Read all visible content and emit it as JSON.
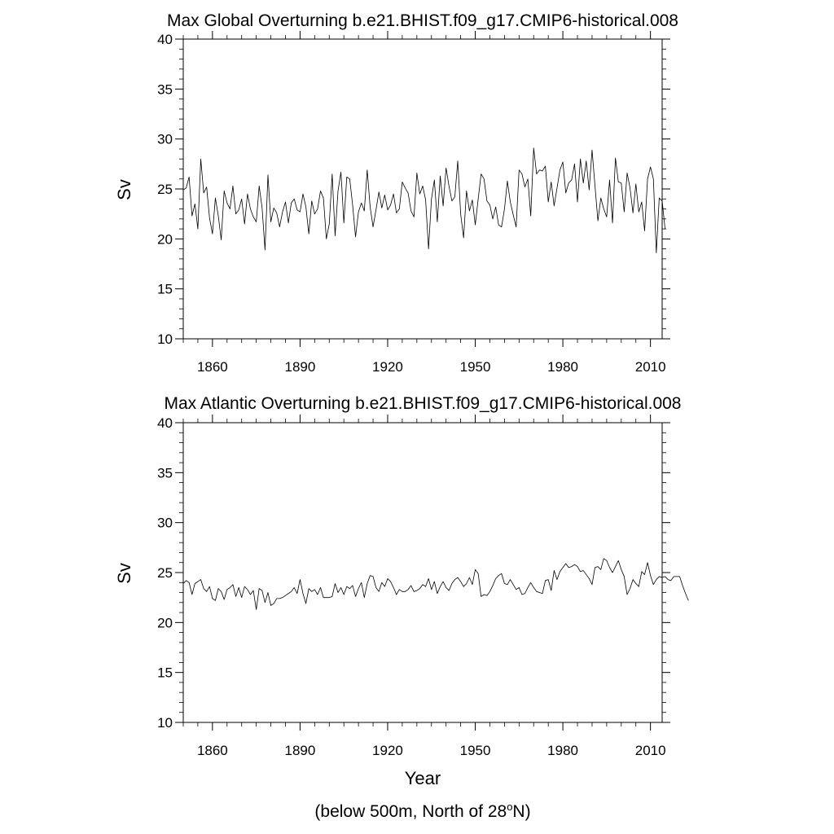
{
  "colors": {
    "line": "#000000",
    "axis": "#000000",
    "background": "#ffffff"
  },
  "chart_data": [
    {
      "type": "line",
      "title": "Max Global Overturning b.e21.BHIST.f09_g17.CMIP6-historical.008",
      "xlabel": "",
      "ylabel": "Sv",
      "xlim": [
        1850,
        2014
      ],
      "ylim": [
        10,
        40
      ],
      "xticks": [
        1860,
        1890,
        1920,
        1950,
        1980,
        2010
      ],
      "xtick_labels": [
        "1860",
        "1890",
        "1920",
        "1950",
        "1980",
        "2010"
      ],
      "yticks": [
        10,
        15,
        20,
        25,
        30,
        35,
        40
      ],
      "ytick_labels": [
        "10",
        "15",
        "20",
        "25",
        "30",
        "35",
        "40"
      ],
      "grid": false,
      "legend": "none",
      "x_start": 1850,
      "x_step": 1,
      "values": [
        24.9,
        25.1,
        26.2,
        22.3,
        23.5,
        21.0,
        28.0,
        24.6,
        25.2,
        22.1,
        20.5,
        24.1,
        22.3,
        19.9,
        24.8,
        23.6,
        23.0,
        25.3,
        22.5,
        22.9,
        24.0,
        21.5,
        24.5,
        23.0,
        22.2,
        21.7,
        25.3,
        23.1,
        18.9,
        26.4,
        21.7,
        23.1,
        22.6,
        21.2,
        22.7,
        23.7,
        21.6,
        23.6,
        24.0,
        22.9,
        22.7,
        24.5,
        23.2,
        20.5,
        23.8,
        22.5,
        23.0,
        24.8,
        24.1,
        20.0,
        21.5,
        26.5,
        20.3,
        24.8,
        26.7,
        21.6,
        26.2,
        26.0,
        23.4,
        20.2,
        22.7,
        23.6,
        22.8,
        26.9,
        23.2,
        21.2,
        22.9,
        24.7,
        23.1,
        24.4,
        22.9,
        23.4,
        24.5,
        22.6,
        23.0,
        25.7,
        25.1,
        24.6,
        22.8,
        22.2,
        26.6,
        24.5,
        25.3,
        23.9,
        19.0,
        24.0,
        25.9,
        21.7,
        26.3,
        23.3,
        27.1,
        25.3,
        23.8,
        24.2,
        27.8,
        22.5,
        20.1,
        24.8,
        22.8,
        23.9,
        21.4,
        24.0,
        26.5,
        26.0,
        23.8,
        23.4,
        22.0,
        23.2,
        21.4,
        21.2,
        23.0,
        25.8,
        23.7,
        22.4,
        21.2,
        26.9,
        26.5,
        25.2,
        26.0,
        22.3,
        29.1,
        26.5,
        26.9,
        26.8,
        27.3,
        23.7,
        25.7,
        23.3,
        25.1,
        26.9,
        27.7,
        24.6,
        25.6,
        25.9,
        27.5,
        23.7,
        28.0,
        25.6,
        27.8,
        24.9,
        28.9,
        25.3,
        21.8,
        24.1,
        23.0,
        22.2,
        25.9,
        21.6,
        28.1,
        25.7,
        25.6,
        22.7,
        26.6,
        25.1,
        22.6,
        25.5,
        22.7,
        23.7,
        20.8,
        26.0,
        27.2,
        26.0,
        18.6,
        24.1,
        23.8,
        21.0
      ]
    },
    {
      "type": "line",
      "title": "Max Atlantic Overturning b.e21.BHIST.f09_g17.CMIP6-historical.008",
      "xlabel": "Year",
      "ylabel": "Sv",
      "xlim": [
        1850,
        2014
      ],
      "ylim": [
        10,
        40
      ],
      "xticks": [
        1860,
        1890,
        1920,
        1950,
        1980,
        2010
      ],
      "xtick_labels": [
        "1860",
        "1890",
        "1920",
        "1950",
        "1980",
        "2010"
      ],
      "yticks": [
        10,
        15,
        20,
        25,
        30,
        35,
        40
      ],
      "ytick_labels": [
        "10",
        "15",
        "20",
        "25",
        "30",
        "35",
        "40"
      ],
      "grid": false,
      "legend": "none",
      "x_start": 1850,
      "x_step": 1,
      "values": [
        23.9,
        24.2,
        24.0,
        22.8,
        23.9,
        24.1,
        24.3,
        23.4,
        23.1,
        23.6,
        22.4,
        22.2,
        23.4,
        23.1,
        22.3,
        23.3,
        23.5,
        23.8,
        22.6,
        23.5,
        22.5,
        23.6,
        23.3,
        22.8,
        23.2,
        21.3,
        23.4,
        23.2,
        22.0,
        23.0,
        21.7,
        21.9,
        22.4,
        22.4,
        22.5,
        22.7,
        22.9,
        23.1,
        23.5,
        22.9,
        24.3,
        22.9,
        21.9,
        23.4,
        23.1,
        23.3,
        22.8,
        23.5,
        22.5,
        22.5,
        22.5,
        22.6,
        23.9,
        23.0,
        23.5,
        22.8,
        23.6,
        23.4,
        23.7,
        22.6,
        23.4,
        24.0,
        22.5,
        23.9,
        24.7,
        24.6,
        23.5,
        23.1,
        24.0,
        23.6,
        24.4,
        24.1,
        23.5,
        22.8,
        23.3,
        23.1,
        23.1,
        23.3,
        23.7,
        23.1,
        23.2,
        23.4,
        23.8,
        23.6,
        24.4,
        23.3,
        24.1,
        22.9,
        23.6,
        24.1,
        23.5,
        23.2,
        23.9,
        24.3,
        24.5,
        24.1,
        23.6,
        23.9,
        24.5,
        23.8,
        25.3,
        24.9,
        22.6,
        22.8,
        22.7,
        23.1,
        23.7,
        24.4,
        24.7,
        24.9,
        23.9,
        23.8,
        24.3,
        23.8,
        23.3,
        23.5,
        22.8,
        22.9,
        23.5,
        24.0,
        23.5,
        23.1,
        23.0,
        22.9,
        24.2,
        24.3,
        23.2,
        25.2,
        24.3,
        25.1,
        25.5,
        25.9,
        25.5,
        25.6,
        25.8,
        25.6,
        25.1,
        25.2,
        24.8,
        24.4,
        23.8,
        25.5,
        25.6,
        25.3,
        26.4,
        26.2,
        25.5,
        25.0,
        25.6,
        26.2,
        25.3,
        24.6,
        22.8,
        23.4,
        24.3,
        23.9,
        23.6,
        25.1,
        24.8,
        26.0,
        24.7,
        23.8,
        24.3,
        24.6,
        24.5,
        24.6,
        24.3,
        24.2,
        24.6,
        24.6,
        24.6,
        23.7,
        22.9,
        22.2
      ]
    }
  ],
  "footnote": {
    "prefix": "(below 500m, North of 28",
    "superscript": "o",
    "suffix": "N)"
  }
}
